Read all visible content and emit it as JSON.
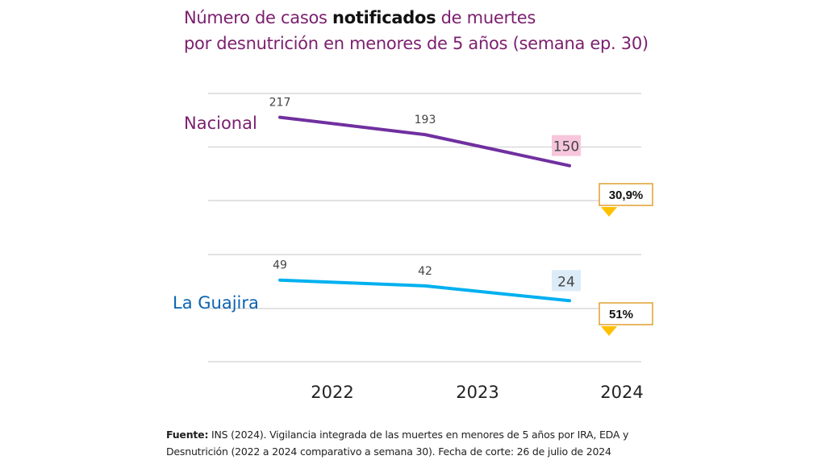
{
  "title": {
    "line1_pre": "Número de casos ",
    "line1_bold": "notificados",
    "line1_post": " de muertes",
    "line2": "por desnutrición en menores de 5 años (semana ep. 30)"
  },
  "chart_data": {
    "type": "line",
    "title": "Número de casos notificados de muertes por desnutrición en menores de 5 años (semana ep. 30)",
    "xlabel": "",
    "ylabel": "",
    "categories": [
      "2022",
      "2023",
      "2024"
    ],
    "grid": true,
    "legend": "inline-left",
    "series": [
      {
        "name": "Nacional",
        "values": [
          217,
          193,
          150
        ],
        "color": "#7030a0",
        "label_color": "#7b1f6e",
        "last_label_bg": "#f7c6dc",
        "ylim": [
          27,
          250
        ],
        "change_label": "30,9%",
        "change_direction": "down"
      },
      {
        "name": "La Guajira",
        "values": [
          49,
          42,
          24
        ],
        "color": "#00b0f0",
        "label_color": "#0b63b0",
        "last_label_bg": "#dcebf8",
        "ylim": [
          -50,
          80
        ],
        "change_label": "51%",
        "change_direction": "down"
      }
    ],
    "annotation_colors": {
      "box_border": "#e0a030",
      "arrow": "#ffc000"
    }
  },
  "footer": {
    "source_label": "Fuente:",
    "source_text": " INS (2024). Vigilancia integrada de las muertes en menores de 5 años por IRA, EDA y Desnutrición (2022 a 2024 comparativo a semana 30). Fecha de corte: 26 de julio de 2024"
  }
}
